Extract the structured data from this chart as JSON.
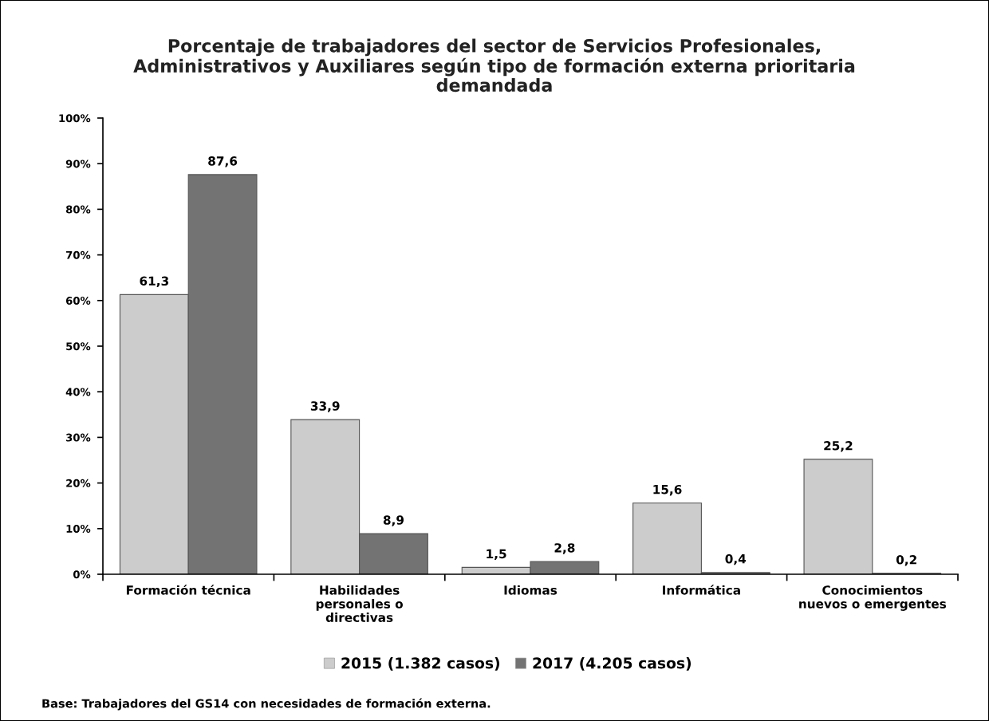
{
  "chart_data": {
    "type": "bar",
    "title": "Porcentaje de trabajadores del sector de Servicios Profesionales,\nAdministrativos y Auxiliares según tipo de formación externa prioritaria\ndemandada",
    "categories": [
      "Formación técnica",
      "Habilidades\npersonales o\ndirectivas",
      "Idiomas",
      "Informática",
      "Conocimientos\nnuevos o emergentes"
    ],
    "series": [
      {
        "name": "2015 (1.382 casos)",
        "color": "#cccccc",
        "values": [
          61.3,
          33.9,
          1.5,
          15.6,
          25.2
        ],
        "value_labels": [
          "61,3",
          "33,9",
          "1,5",
          "15,6",
          "25,2"
        ]
      },
      {
        "name": "2017 (4.205 casos)",
        "color": "#737373",
        "values": [
          87.6,
          8.9,
          2.8,
          0.4,
          0.2
        ],
        "value_labels": [
          "87,6",
          "8,9",
          "2,8",
          "0,4",
          "0,2"
        ]
      }
    ],
    "ylim": [
      0,
      100
    ],
    "yticks": [
      {
        "value": 0,
        "label": "0%"
      },
      {
        "value": 10,
        "label": "10%"
      },
      {
        "value": 20,
        "label": "20%"
      },
      {
        "value": 30,
        "label": "30%"
      },
      {
        "value": 40,
        "label": "40%"
      },
      {
        "value": 50,
        "label": "50%"
      },
      {
        "value": 60,
        "label": "60%"
      },
      {
        "value": 70,
        "label": "70%"
      },
      {
        "value": 80,
        "label": "80%"
      },
      {
        "value": 90,
        "label": "90%"
      },
      {
        "value": 100,
        "label": "100%"
      }
    ],
    "grid": false,
    "legend": "bottom",
    "annotations": [
      "Base: Trabajadores del GS14 con necesidades de formación externa."
    ]
  }
}
